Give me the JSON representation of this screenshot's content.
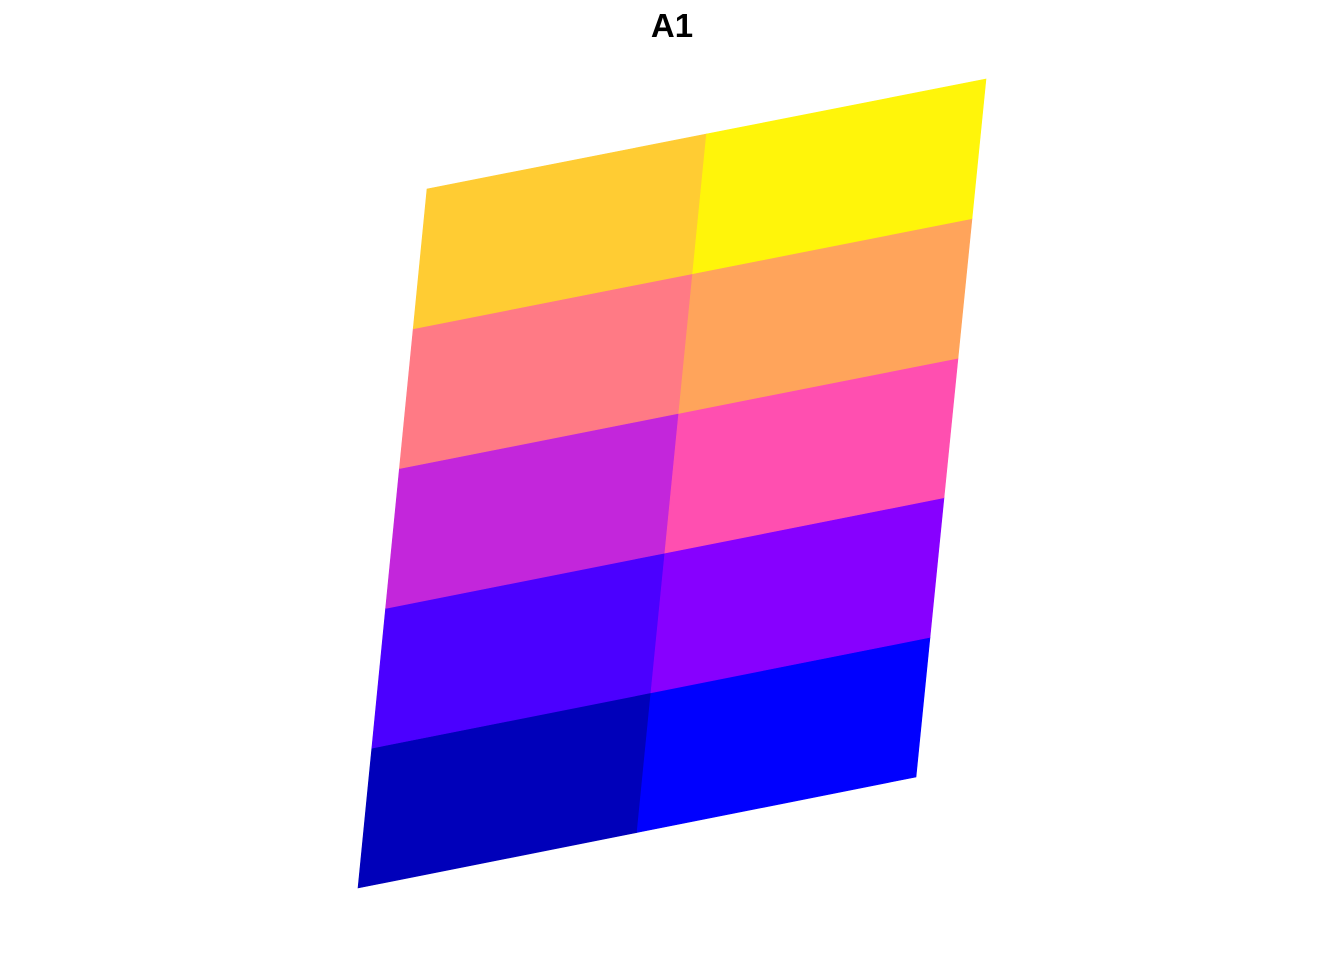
{
  "chart_data": {
    "type": "heatmap",
    "title": "A1",
    "xlabel": "",
    "ylabel": "",
    "grid": false,
    "legend": "none",
    "columns": 2,
    "rows": 5,
    "cells": [
      {
        "row": 1,
        "col": 1,
        "color": "#0000BA"
      },
      {
        "row": 1,
        "col": 2,
        "color": "#0000FF"
      },
      {
        "row": 2,
        "col": 1,
        "color": "#4B00FF"
      },
      {
        "row": 2,
        "col": 2,
        "color": "#8700FF"
      },
      {
        "row": 3,
        "col": 1,
        "color": "#C326DB"
      },
      {
        "row": 3,
        "col": 2,
        "color": "#FF4FB0"
      },
      {
        "row": 4,
        "col": 1,
        "color": "#FF7A85"
      },
      {
        "row": 4,
        "col": 2,
        "color": "#FFA45B"
      },
      {
        "row": 5,
        "col": 1,
        "color": "#FFCC33"
      },
      {
        "row": 5,
        "col": 2,
        "color": "#FFF50A"
      }
    ]
  }
}
